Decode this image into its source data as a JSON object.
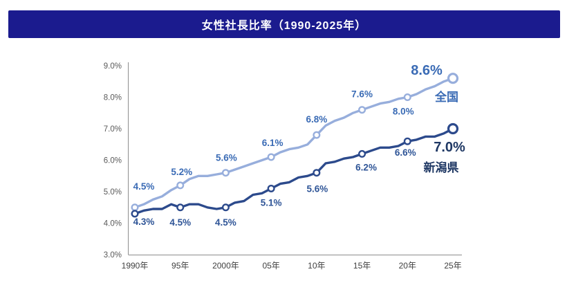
{
  "header": {
    "title": "女性社長比率（1990-2025年）"
  },
  "colors": {
    "banner_bg": "#1B1B8E",
    "banner_text": "#FFFFFF",
    "national_line": "#97AEDC",
    "national_label": "#3A6BB5",
    "niigata_line": "#2C4A8C",
    "niigata_label": "#2F5597",
    "niigata_end_label": "#1F3864",
    "axis_text_y": "#595959",
    "axis_text_x": "#404040",
    "axis_line": "#8C8C8C",
    "background": "#FFFFFF"
  },
  "chart_data": {
    "type": "line",
    "title": "女性社長比率（1990-2025年）",
    "grid": false,
    "legend_position": "end-of-line",
    "ylim": [
      3.0,
      9.0
    ],
    "y_tick_values": [
      3,
      4,
      5,
      6,
      7,
      8,
      9
    ],
    "y_tick_labels": [
      "3.0%",
      "4.0%",
      "5.0%",
      "6.0%",
      "7.0%",
      "8.0%",
      "9.0%"
    ],
    "x_tick_years": [
      1990,
      1995,
      2000,
      2005,
      2010,
      2015,
      2020,
      2025
    ],
    "x_tick_labels": [
      "1990年",
      "95年",
      "2000年",
      "05年",
      "10年",
      "15年",
      "20年",
      "25年"
    ],
    "series": [
      {
        "name": "全国",
        "line_color": "#97AEDC",
        "label_color": "#3A6BB5",
        "name_color": "#3A6BB5",
        "end_label": "8.6%",
        "end_label_color": "#3A6BB5",
        "labeled_points": [
          {
            "year": 1990,
            "value": 4.5,
            "label": "4.5%"
          },
          {
            "year": 1995,
            "value": 5.2,
            "label": "5.2%"
          },
          {
            "year": 2000,
            "value": 5.6,
            "label": "5.6%"
          },
          {
            "year": 2005,
            "value": 6.1,
            "label": "6.1%"
          },
          {
            "year": 2010,
            "value": 6.8,
            "label": "6.8%"
          },
          {
            "year": 2015,
            "value": 7.6,
            "label": "7.6%"
          },
          {
            "year": 2020,
            "value": 8.0,
            "label": "8.0%"
          },
          {
            "year": 2025,
            "value": 8.6,
            "label": "8.6%"
          }
        ],
        "years_annual": [
          1990,
          1991,
          1992,
          1993,
          1994,
          1995,
          1996,
          1997,
          1998,
          1999,
          2000,
          2001,
          2002,
          2003,
          2004,
          2005,
          2006,
          2007,
          2008,
          2009,
          2010,
          2011,
          2012,
          2013,
          2014,
          2015,
          2016,
          2017,
          2018,
          2019,
          2020,
          2021,
          2022,
          2023,
          2024,
          2025
        ],
        "values_annual": [
          4.5,
          4.6,
          4.75,
          4.85,
          5.05,
          5.2,
          5.4,
          5.5,
          5.5,
          5.55,
          5.6,
          5.7,
          5.8,
          5.9,
          6.0,
          6.1,
          6.25,
          6.35,
          6.4,
          6.5,
          6.8,
          7.1,
          7.25,
          7.35,
          7.5,
          7.6,
          7.7,
          7.8,
          7.85,
          7.95,
          8.0,
          8.1,
          8.25,
          8.35,
          8.5,
          8.6
        ]
      },
      {
        "name": "新潟県",
        "line_color": "#2C4A8C",
        "label_color": "#2F5597",
        "name_color": "#1F3864",
        "end_label": "7.0%",
        "end_label_color": "#1F3864",
        "labeled_points": [
          {
            "year": 1990,
            "value": 4.3,
            "label": "4.3%"
          },
          {
            "year": 1995,
            "value": 4.5,
            "label": "4.5%"
          },
          {
            "year": 2000,
            "value": 4.5,
            "label": "4.5%"
          },
          {
            "year": 2005,
            "value": 5.1,
            "label": "5.1%"
          },
          {
            "year": 2010,
            "value": 5.6,
            "label": "5.6%"
          },
          {
            "year": 2015,
            "value": 6.2,
            "label": "6.2%"
          },
          {
            "year": 2020,
            "value": 6.6,
            "label": "6.6%"
          },
          {
            "year": 2025,
            "value": 7.0,
            "label": "7.0%"
          }
        ],
        "years_annual": [
          1990,
          1991,
          1992,
          1993,
          1994,
          1995,
          1996,
          1997,
          1998,
          1999,
          2000,
          2001,
          2002,
          2003,
          2004,
          2005,
          2006,
          2007,
          2008,
          2009,
          2010,
          2011,
          2012,
          2013,
          2014,
          2015,
          2016,
          2017,
          2018,
          2019,
          2020,
          2021,
          2022,
          2023,
          2024,
          2025
        ],
        "values_annual": [
          4.3,
          4.4,
          4.45,
          4.45,
          4.6,
          4.5,
          4.6,
          4.6,
          4.5,
          4.45,
          4.5,
          4.65,
          4.7,
          4.9,
          4.95,
          5.1,
          5.25,
          5.3,
          5.45,
          5.5,
          5.6,
          5.9,
          5.95,
          6.05,
          6.1,
          6.2,
          6.3,
          6.4,
          6.4,
          6.45,
          6.6,
          6.65,
          6.75,
          6.75,
          6.85,
          7.0
        ]
      }
    ]
  }
}
